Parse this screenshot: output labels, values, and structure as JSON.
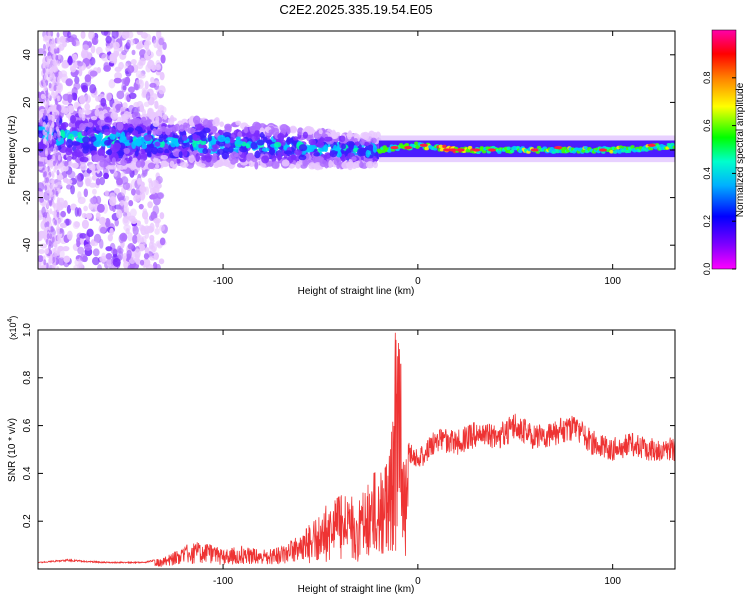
{
  "page_title": "C2E2.2025.335.19.54.E05",
  "chart_data": [
    {
      "type": "heatmap",
      "name": "spectrogram",
      "xlabel": "Height of straight line (km)",
      "ylabel": "Frequency (Hz)",
      "xlim": [
        -195,
        132
      ],
      "ylim": [
        -50,
        50
      ],
      "xticks": [
        -100,
        0,
        100
      ],
      "yticks": [
        -40,
        -20,
        0,
        20,
        40
      ],
      "ytick_labels": [
        "-40",
        "-20",
        "0",
        "20",
        "40"
      ],
      "colorbar": {
        "label": "Normalized spectral amplitude",
        "range": [
          0,
          1
        ],
        "ticks": [
          0.0,
          0.2,
          0.4,
          0.6,
          0.8
        ],
        "tick_labels": [
          "0.0",
          "0.2",
          "0.4",
          "0.6",
          "0.8"
        ],
        "colormap": [
          "#ff00ff",
          "#8000ff",
          "#0000ff",
          "#00ffff",
          "#00ff00",
          "#ffff00",
          "#ff8000",
          "#ff0000",
          "#ff00ff"
        ]
      },
      "ridge": {
        "x": [
          -190,
          -175,
          -160,
          -140,
          -120,
          -100,
          -80,
          -60,
          -40,
          -20,
          -10,
          0,
          20,
          50,
          80,
          100,
          120,
          132
        ],
        "y": [
          6,
          5,
          4,
          4,
          3,
          3,
          2,
          1,
          0,
          0,
          1,
          2,
          0,
          0,
          0,
          0,
          1,
          2
        ]
      },
      "colors": {
        "ridge_strong": "#ff2040",
        "noise": "#7b2bff"
      }
    },
    {
      "type": "line",
      "name": "snr",
      "xlabel": "Height of straight line (km)",
      "ylabel": "SNR (10 * v/v)",
      "y_scale_label": "(x10",
      "y_scale_exp": "4",
      "xlim": [
        -195,
        132
      ],
      "ylim": [
        0,
        1.0
      ],
      "xticks": [
        -100,
        0,
        100
      ],
      "yticks": [
        0.2,
        0.4,
        0.6,
        0.8,
        1.0
      ],
      "ytick_labels": [
        "0.2",
        "0.4",
        "0.6",
        "0.8",
        "1.0"
      ],
      "series": [
        {
          "name": "SNR",
          "color": "#ee3333",
          "x": [
            -195,
            -180,
            -160,
            -140,
            -130,
            -120,
            -110,
            -100,
            -90,
            -80,
            -70,
            -60,
            -50,
            -40,
            -30,
            -20,
            -15,
            -12,
            -10,
            -8,
            -5,
            0,
            5,
            10,
            20,
            30,
            40,
            50,
            60,
            70,
            80,
            90,
            100,
            110,
            120,
            132
          ],
          "y": [
            0.03,
            0.04,
            0.03,
            0.03,
            0.05,
            0.1,
            0.12,
            0.08,
            0.1,
            0.08,
            0.1,
            0.15,
            0.25,
            0.32,
            0.3,
            0.45,
            0.55,
            0.65,
            0.9,
            0.45,
            0.55,
            0.5,
            0.55,
            0.6,
            0.58,
            0.62,
            0.6,
            0.66,
            0.6,
            0.63,
            0.65,
            0.58,
            0.55,
            0.57,
            0.55,
            0.55
          ]
        }
      ]
    }
  ]
}
